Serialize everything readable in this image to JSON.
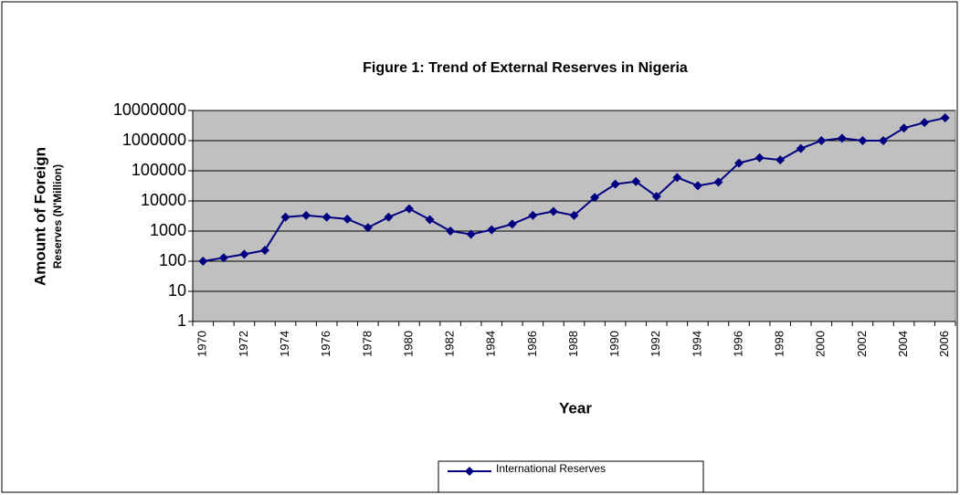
{
  "chart_data": {
    "type": "line",
    "title": "Figure 1: Trend of External Reserves in Nigeria",
    "x_label": "Year",
    "y_label": [
      "Amount of Foreign",
      "Reserves (N'Million)"
    ],
    "categories": [
      "1970",
      null,
      "1972",
      null,
      "1974",
      null,
      "1976",
      null,
      "1978",
      null,
      "1980",
      null,
      "1982",
      null,
      "1984",
      null,
      "1986",
      null,
      "1988",
      null,
      "1990",
      null,
      "1992",
      null,
      "1994",
      null,
      "1996",
      null,
      "1998",
      null,
      "2000",
      null,
      "2002",
      null,
      "2004",
      null,
      "2006"
    ],
    "series": [
      {
        "name": "International Reserves",
        "color": "#000080",
        "values": [
          100,
          130,
          170,
          230,
          2900,
          3300,
          2900,
          2500,
          1300,
          2900,
          5500,
          2400,
          1000,
          780,
          1100,
          1700,
          3300,
          4500,
          3300,
          13000,
          36000,
          44000,
          14000,
          60000,
          32000,
          42000,
          180000,
          270000,
          230000,
          550000,
          1000000,
          1200000,
          1000000,
          1000000,
          2600000,
          4000000,
          5700000
        ]
      }
    ],
    "ylim": [
      1,
      10000000
    ],
    "yticks": [
      1,
      10,
      100,
      1000,
      10000,
      100000,
      1000000,
      10000000
    ],
    "log_scale": true,
    "grid": true,
    "plot_background": "#c0c0c0",
    "legend": "bottom"
  }
}
